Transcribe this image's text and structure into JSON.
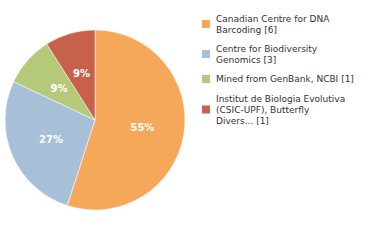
{
  "chart_data": {
    "type": "pie",
    "categories": [
      "Canadian Centre for DNA\nBarcoding [6]",
      "Centre for Biodiversity\nGenomics [3]",
      "Mined from GenBank, NCBI [1]",
      "Institut de Biologia Evolutiva\n(CSIC-UPF), Butterfly\nDivers... [1]"
    ],
    "values": [
      55,
      27,
      9,
      9
    ],
    "value_labels": [
      "55%",
      "27%",
      "9%",
      "9%"
    ],
    "colors": [
      "#F5A85A",
      "#A8BFD8",
      "#B5C97A",
      "#C8614A"
    ],
    "data_labels": true,
    "legend": "upper right"
  }
}
